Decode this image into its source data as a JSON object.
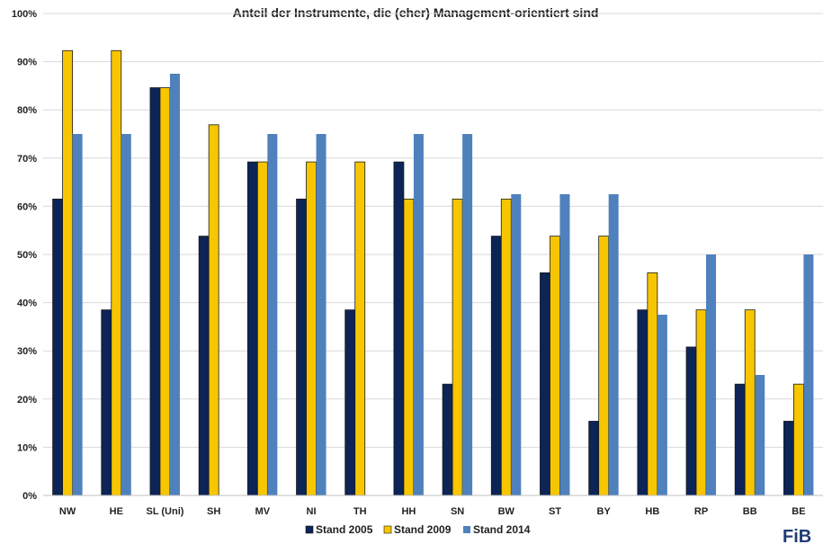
{
  "chart_data": {
    "type": "bar",
    "title": "Anteil der Instrumente, die (eher) Management-orientiert sind",
    "xlabel": "",
    "ylabel": "",
    "ylim": [
      0,
      100
    ],
    "ytick_step": 10,
    "ytick_suffix": "%",
    "grid": true,
    "legend_position": "bottom",
    "categories": [
      "NW",
      "HE",
      "SL (Uni)",
      "SH",
      "MV",
      "NI",
      "TH",
      "HH",
      "SN",
      "BW",
      "ST",
      "BY",
      "HB",
      "RP",
      "BB",
      "BE"
    ],
    "series": [
      {
        "name": "Stand 2005",
        "color": "#0d2456",
        "values": [
          61.5,
          38.5,
          84.6,
          53.8,
          69.2,
          61.5,
          38.5,
          69.2,
          23.1,
          53.8,
          46.2,
          15.4,
          38.5,
          30.8,
          23.1,
          15.4
        ]
      },
      {
        "name": "Stand 2009",
        "color": "#f7c600",
        "values": [
          92.3,
          92.3,
          84.6,
          76.9,
          69.2,
          69.2,
          69.2,
          61.5,
          61.5,
          61.5,
          53.8,
          53.8,
          46.2,
          38.5,
          38.5,
          23.1
        ]
      },
      {
        "name": "Stand 2014",
        "color": "#4f81bd",
        "values": [
          75,
          75,
          87.5,
          null,
          75,
          75,
          null,
          75,
          75,
          62.5,
          62.5,
          62.5,
          37.5,
          50,
          25,
          50
        ]
      }
    ]
  },
  "logo": {
    "text": "FiB",
    "colors": [
      "#f7a600",
      "#1f3b73"
    ]
  }
}
